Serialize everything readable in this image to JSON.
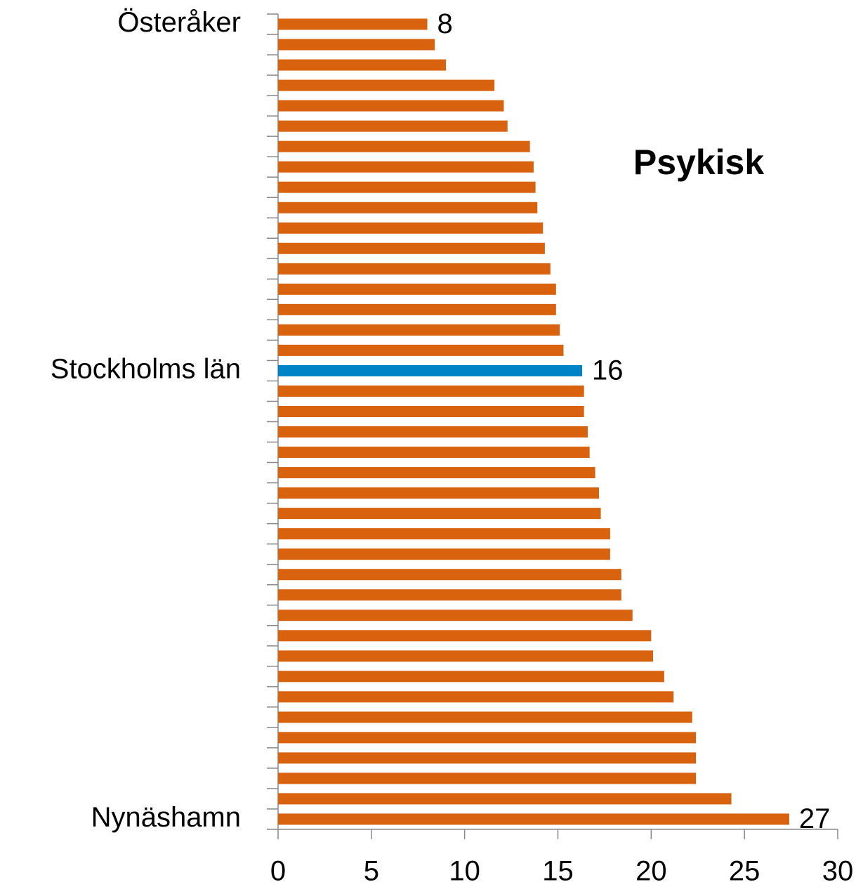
{
  "chart_data": {
    "type": "bar",
    "orientation": "horizontal",
    "title": "Psykisk",
    "categories": [
      "Österåker",
      null,
      null,
      null,
      null,
      null,
      null,
      null,
      null,
      null,
      null,
      null,
      null,
      null,
      null,
      null,
      null,
      "Stockholms län",
      null,
      null,
      null,
      null,
      null,
      null,
      null,
      null,
      null,
      null,
      null,
      null,
      null,
      null,
      null,
      null,
      null,
      null,
      null,
      null,
      null,
      "Nynäshamn"
    ],
    "values": [
      8.0,
      8.4,
      9.0,
      11.6,
      12.1,
      12.3,
      13.5,
      13.7,
      13.8,
      13.9,
      14.2,
      14.3,
      14.6,
      14.9,
      14.9,
      15.1,
      15.3,
      16.3,
      16.4,
      16.4,
      16.6,
      16.7,
      17.0,
      17.2,
      17.3,
      17.8,
      17.8,
      18.4,
      18.4,
      19.0,
      20.0,
      20.1,
      20.7,
      21.2,
      22.2,
      22.4,
      22.4,
      22.4,
      24.3,
      27.4
    ],
    "value_labels": [
      "8",
      null,
      null,
      null,
      null,
      null,
      null,
      null,
      null,
      null,
      null,
      null,
      null,
      null,
      null,
      null,
      null,
      "16",
      null,
      null,
      null,
      null,
      null,
      null,
      null,
      null,
      null,
      null,
      null,
      null,
      null,
      null,
      null,
      null,
      null,
      null,
      null,
      null,
      null,
      "27"
    ],
    "colors": [
      "#d9620f",
      "#d9620f",
      "#d9620f",
      "#d9620f",
      "#d9620f",
      "#d9620f",
      "#d9620f",
      "#d9620f",
      "#d9620f",
      "#d9620f",
      "#d9620f",
      "#d9620f",
      "#d9620f",
      "#d9620f",
      "#d9620f",
      "#d9620f",
      "#d9620f",
      "#0084c8",
      "#d9620f",
      "#d9620f",
      "#d9620f",
      "#d9620f",
      "#d9620f",
      "#d9620f",
      "#d9620f",
      "#d9620f",
      "#d9620f",
      "#d9620f",
      "#d9620f",
      "#d9620f",
      "#d9620f",
      "#d9620f",
      "#d9620f",
      "#d9620f",
      "#d9620f",
      "#d9620f",
      "#d9620f",
      "#d9620f",
      "#d9620f",
      "#d9620f"
    ],
    "xlim": [
      0,
      30
    ],
    "xticks": [
      0,
      5,
      10,
      15,
      20,
      25,
      30
    ],
    "grid": false
  }
}
